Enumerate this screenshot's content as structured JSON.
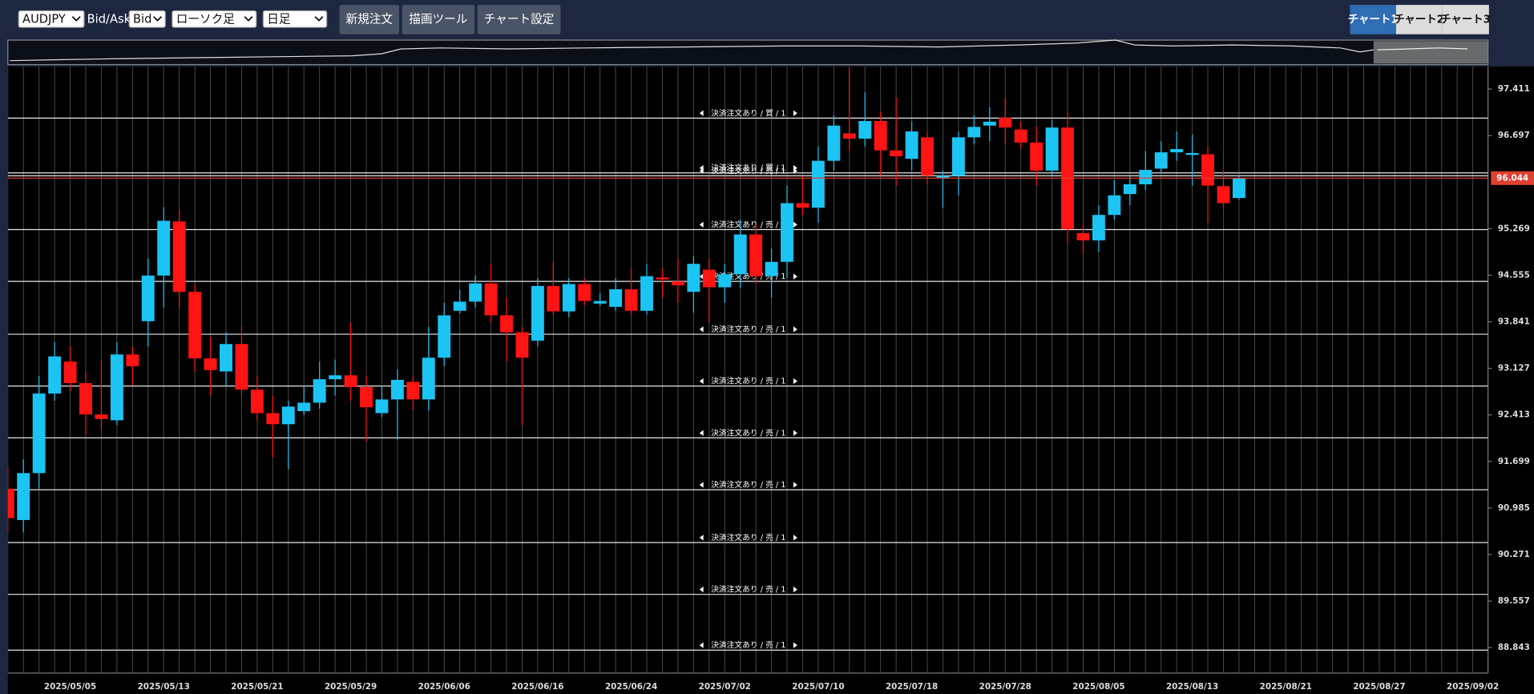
{
  "toolbar": {
    "symbol": "AUDJPY",
    "price_side_label": "Bid/Ask",
    "price_side": "Bid",
    "chart_type": "ローソク足",
    "timeframe": "日足",
    "buttons": [
      "新規注文",
      "描画ツール",
      "チャート設定"
    ],
    "tabs": [
      "チャート1",
      "チャート2",
      "チャート3"
    ]
  },
  "chart_data": {
    "type": "candlestick",
    "categories": [
      null,
      null,
      null,
      null,
      "2025/05/05",
      null,
      null,
      null,
      null,
      null,
      "2025/05/13",
      null,
      null,
      null,
      null,
      null,
      "2025/05/21",
      null,
      null,
      null,
      null,
      null,
      "2025/05/29",
      null,
      null,
      null,
      null,
      null,
      "2025/06/06",
      null,
      null,
      null,
      null,
      null,
      "2025/06/16",
      null,
      null,
      null,
      null,
      null,
      "2025/06/24",
      null,
      null,
      null,
      null,
      null,
      "2025/07/02",
      null,
      null,
      null,
      null,
      null,
      "2025/07/10",
      null,
      null,
      null,
      null,
      null,
      "2025/07/18",
      null,
      null,
      null,
      null,
      null,
      "2025/07/28",
      null,
      null,
      null,
      null,
      null,
      "2025/08/05",
      null,
      null,
      null,
      null,
      null,
      "2025/08/13",
      null,
      null,
      null,
      null,
      null,
      "2025/08/21",
      null,
      null,
      null,
      null,
      null,
      "2025/08/27",
      null,
      null,
      null,
      null,
      null,
      "2025/09/02"
    ],
    "open": [
      91.28,
      90.8,
      91.52,
      92.74,
      93.23,
      92.9,
      92.42,
      92.33,
      93.34,
      93.85,
      94.55,
      95.38,
      94.3,
      93.28,
      93.08,
      93.5,
      92.8,
      92.44,
      92.27,
      92.47,
      92.6,
      92.96,
      93.02,
      92.84,
      92.44,
      92.65,
      92.92,
      92.65,
      93.29,
      94.01,
      94.15,
      94.43,
      93.94,
      93.68,
      93.55,
      94.39,
      94.0,
      94.42,
      94.12,
      94.07,
      94.34,
      94.01,
      94.52,
      94.46,
      94.3,
      94.64,
      94.37,
      94.57,
      95.18,
      94.54,
      94.76,
      95.66,
      95.59,
      96.31,
      96.73,
      96.65,
      96.92,
      96.47,
      96.34,
      96.67,
      96.05,
      96.08,
      96.67,
      96.85,
      96.97,
      96.79,
      96.59,
      96.16,
      96.82,
      95.2,
      95.09,
      95.48,
      95.8,
      95.95,
      96.19,
      96.44,
      96.4,
      96.41,
      95.92,
      95.74,
      null,
      null,
      null,
      null,
      null,
      null,
      null,
      null,
      null,
      null,
      null,
      null,
      null,
      null,
      null
    ],
    "high": [
      91.61,
      91.73,
      93.01,
      93.53,
      93.46,
      93.08,
      93.26,
      93.53,
      93.46,
      94.81,
      95.6,
      95.56,
      94.43,
      93.61,
      93.68,
      93.79,
      93.01,
      92.71,
      92.63,
      92.86,
      93.23,
      93.26,
      93.83,
      93.01,
      92.86,
      93.11,
      93.01,
      93.76,
      94.13,
      94.33,
      94.55,
      94.73,
      94.21,
      93.76,
      94.51,
      94.76,
      94.51,
      94.51,
      94.28,
      94.51,
      94.66,
      94.73,
      94.66,
      94.81,
      94.85,
      94.81,
      94.73,
      95.41,
      95.33,
      94.96,
      95.93,
      96.08,
      96.53,
      97.01,
      97.73,
      97.36,
      97.06,
      97.28,
      96.91,
      96.76,
      96.16,
      96.76,
      97.01,
      97.13,
      97.28,
      96.91,
      96.83,
      96.94,
      97.06,
      95.33,
      95.63,
      96.01,
      96.08,
      96.46,
      96.61,
      96.76,
      96.71,
      96.53,
      96.16,
      96.08,
      null,
      null,
      null,
      null,
      null,
      null,
      null,
      null,
      null,
      null,
      null,
      null,
      null,
      null,
      null
    ],
    "low": [
      90.61,
      90.61,
      91.28,
      92.63,
      92.78,
      92.11,
      92.18,
      92.26,
      92.86,
      93.46,
      94.06,
      94.06,
      93.08,
      92.71,
      92.86,
      92.71,
      92.33,
      91.76,
      91.58,
      92.41,
      92.51,
      92.71,
      92.63,
      92.0,
      92.38,
      92.03,
      92.48,
      92.48,
      93.16,
      93.97,
      94.06,
      93.83,
      93.23,
      92.26,
      93.46,
      93.95,
      93.91,
      94.1,
      94.09,
      94.01,
      93.95,
      93.95,
      94.21,
      94.13,
      93.98,
      93.83,
      94.13,
      94.36,
      94.43,
      94.21,
      94.51,
      95.48,
      95.36,
      96.16,
      96.46,
      96.53,
      96.08,
      95.93,
      96.16,
      95.96,
      95.59,
      95.78,
      96.56,
      96.61,
      96.56,
      96.5,
      95.93,
      96.08,
      95.03,
      94.88,
      94.91,
      95.41,
      95.63,
      95.86,
      96.11,
      96.31,
      95.93,
      95.36,
      95.6,
      95.71,
      null,
      null,
      null,
      null,
      null,
      null,
      null,
      null,
      null,
      null,
      null,
      null,
      null,
      null,
      null
    ],
    "close": [
      90.83,
      91.52,
      92.74,
      93.31,
      92.9,
      92.42,
      92.35,
      93.34,
      93.16,
      94.55,
      95.39,
      94.3,
      93.28,
      93.1,
      93.5,
      92.8,
      92.44,
      92.27,
      92.54,
      92.6,
      92.96,
      93.02,
      92.84,
      92.53,
      92.65,
      92.95,
      92.65,
      93.29,
      93.94,
      94.15,
      94.43,
      93.94,
      93.68,
      93.29,
      94.39,
      94.0,
      94.42,
      94.16,
      94.16,
      94.34,
      94.01,
      94.54,
      94.49,
      94.4,
      94.73,
      94.37,
      94.57,
      95.18,
      94.54,
      94.76,
      95.66,
      95.59,
      96.31,
      96.85,
      96.65,
      96.92,
      96.47,
      96.38,
      96.76,
      96.08,
      96.08,
      96.67,
      96.83,
      96.91,
      96.82,
      96.59,
      96.16,
      96.82,
      95.26,
      95.09,
      95.48,
      95.78,
      95.95,
      96.17,
      96.44,
      96.49,
      96.43,
      95.93,
      95.66,
      96.044,
      null,
      null,
      null,
      null,
      null,
      null,
      null,
      null,
      null,
      null,
      null,
      null,
      null,
      null,
      null
    ],
    "up_color": "#1cc4f4",
    "down_color": "#ff1414",
    "ylim": [
      88.453,
      97.756
    ],
    "yticks": [
      97.411,
      96.697,
      95.269,
      94.555,
      93.841,
      93.127,
      92.413,
      91.699,
      90.985,
      90.271,
      89.557,
      88.843
    ],
    "grid": "x",
    "current_price": 96.044,
    "current_price_color": "#e0402f",
    "order_lines": [
      {
        "label": "決済注文あり / 買 / 1",
        "value": 96.965
      },
      {
        "label": "決済注文あり / 買 / 1",
        "value": 96.125
      },
      {
        "label": "決済注文あり / 売 / 1",
        "value": 96.08
      },
      {
        "label": "決済注文あり / 売 / 1",
        "value": 95.255
      },
      {
        "label": "決済注文あり / 売 / 1",
        "value": 94.46
      },
      {
        "label": "決済注文あり / 売 / 1",
        "value": 93.65
      },
      {
        "label": "決済注文あり / 売 / 1",
        "value": 92.855
      },
      {
        "label": "決済注文あり / 売 / 1",
        "value": 92.06
      },
      {
        "label": "決済注文あり / 売 / 1",
        "value": 91.265
      },
      {
        "label": "決済注文あり / 売 / 1",
        "value": 90.455
      },
      {
        "label": "決済注文あり / 売 / 1",
        "value": 89.66
      },
      {
        "label": "決済注文あり / 売 / 1",
        "value": 88.805
      }
    ]
  }
}
